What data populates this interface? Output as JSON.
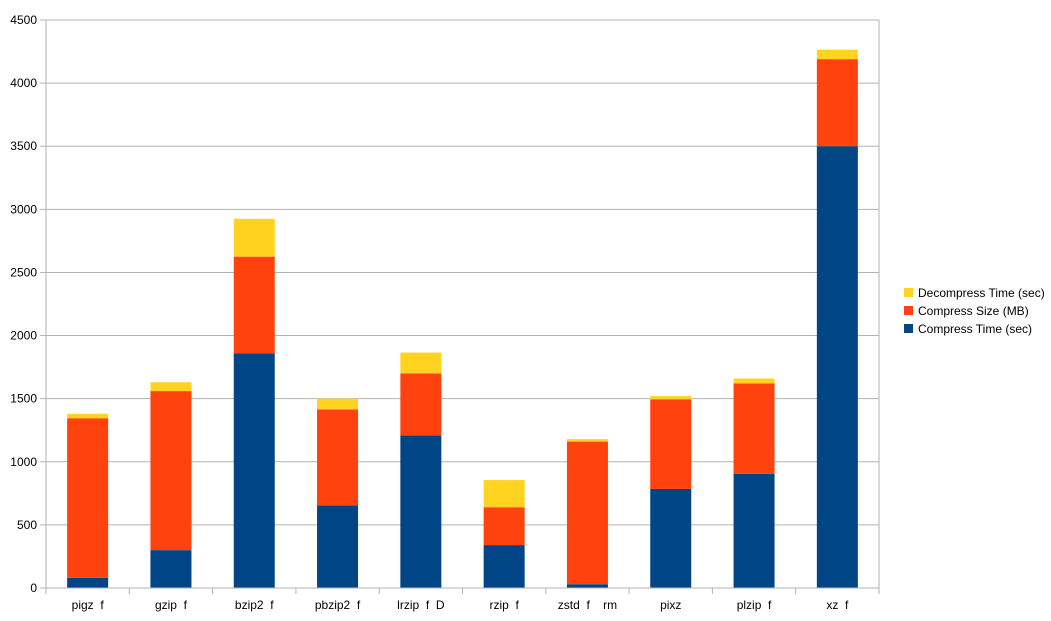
{
  "chart_data": {
    "type": "bar",
    "stacked": true,
    "categories": [
      "pigz  f",
      "gzip  f",
      "bzip2  f",
      "pbzip2  f",
      "lrzip  f  D",
      "rzip  f",
      "zstd  f    rm",
      "pixz",
      "plzip  f",
      "xz  f"
    ],
    "series": [
      {
        "name": "Compress Time (sec)",
        "color": "#004586",
        "values": [
          80,
          300,
          1860,
          655,
          1210,
          340,
          30,
          785,
          905,
          3500
        ]
      },
      {
        "name": "Compress Size (MB)",
        "color": "#ff420e",
        "values": [
          1265,
          1260,
          765,
          760,
          490,
          300,
          1130,
          710,
          715,
          690
        ]
      },
      {
        "name": "Decompress Time (sec)",
        "color": "#ffd320",
        "values": [
          35,
          70,
          300,
          85,
          165,
          215,
          20,
          25,
          40,
          75
        ]
      }
    ],
    "ylim": [
      0,
      4500
    ],
    "yticks": [
      0,
      500,
      1000,
      1500,
      2000,
      2500,
      3000,
      3500,
      4000,
      4500
    ],
    "grid": true,
    "legend": "right"
  }
}
